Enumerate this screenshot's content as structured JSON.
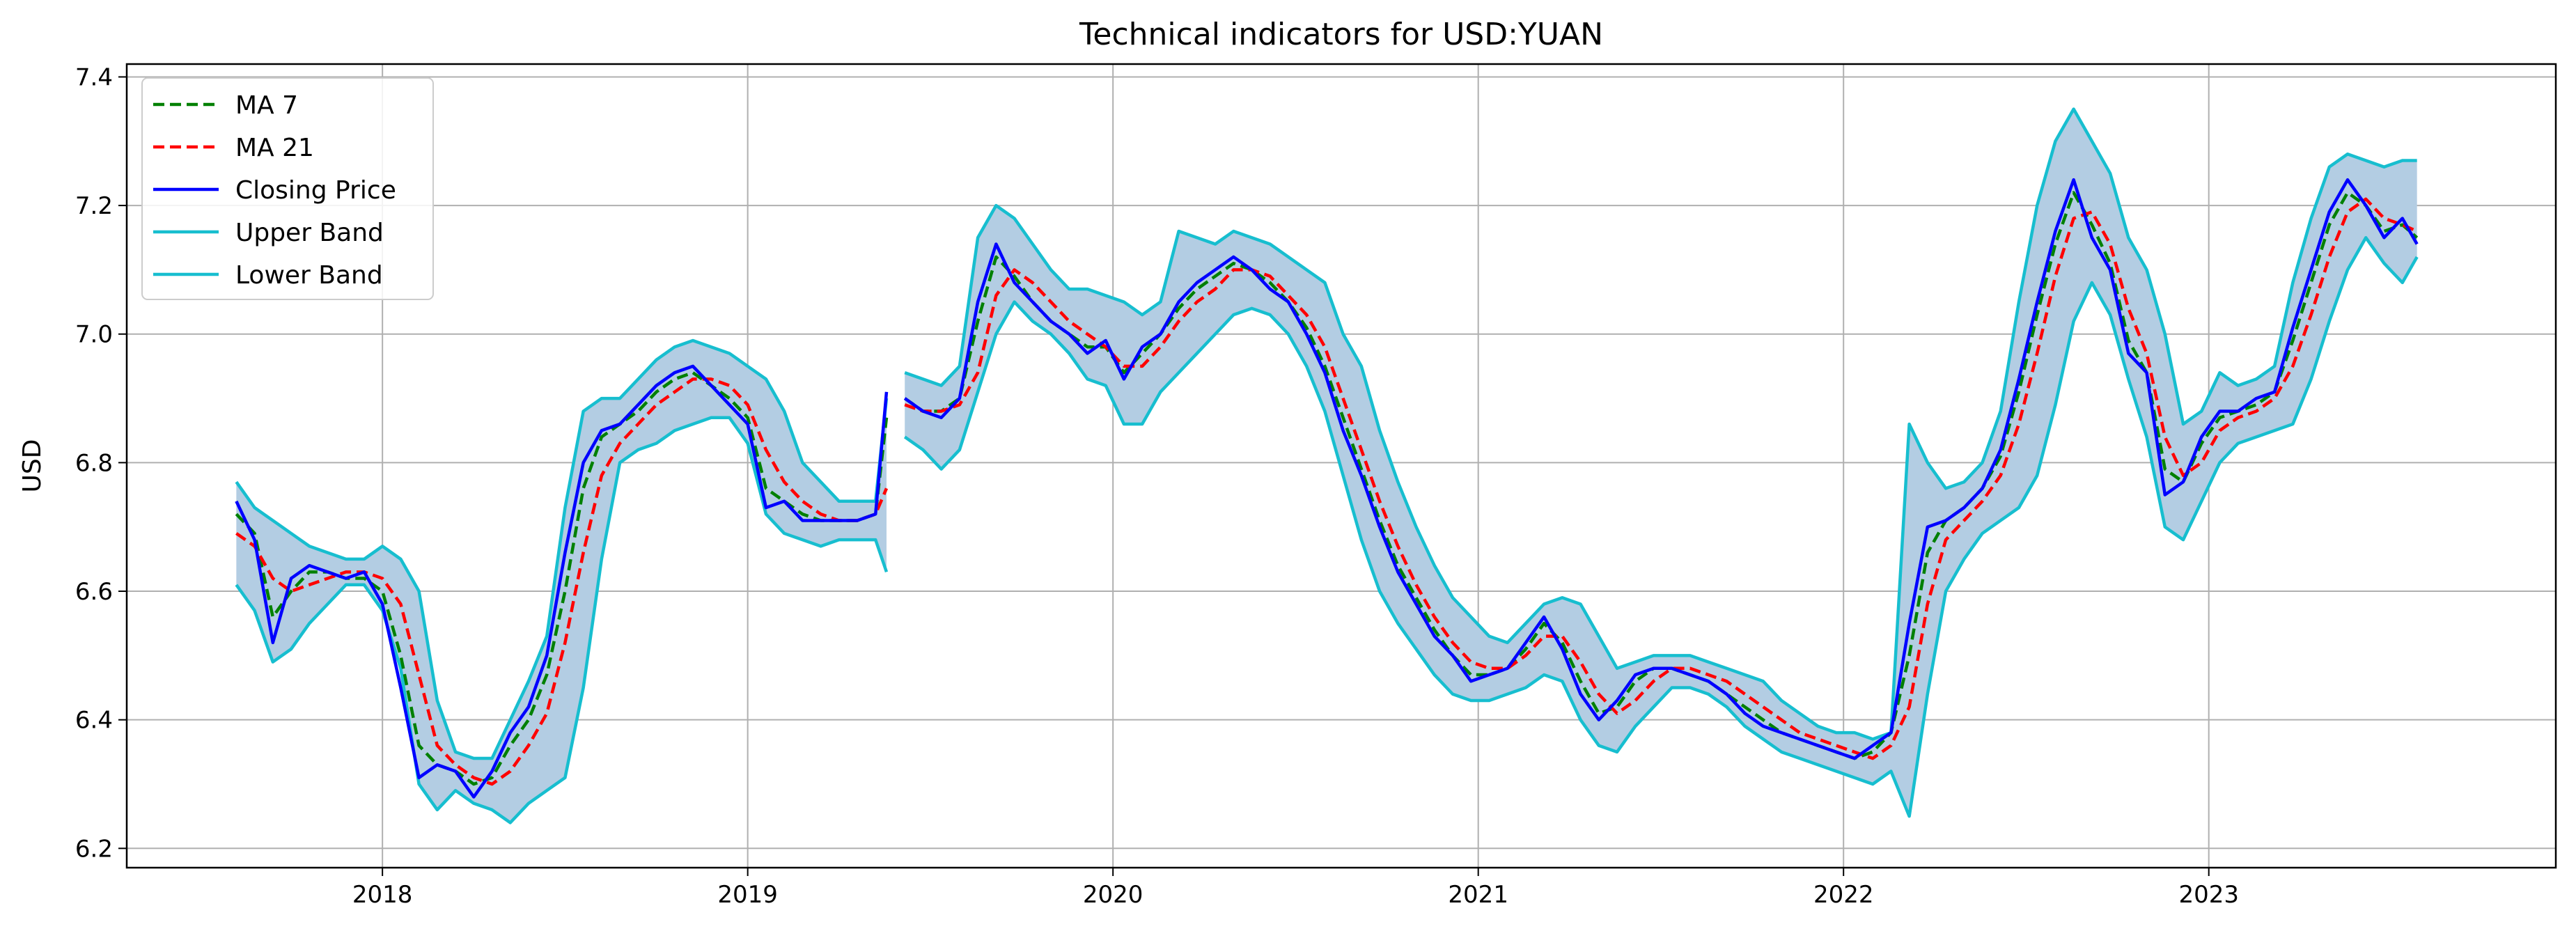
{
  "chart_data": {
    "type": "line",
    "title": "Technical indicators for USD:YUAN",
    "xlabel": "",
    "ylabel": "USD",
    "xlim": [
      2017.3,
      2023.95
    ],
    "ylim": [
      6.17,
      7.42
    ],
    "x_ticks": [
      2018,
      2019,
      2020,
      2021,
      2022,
      2023
    ],
    "x_tick_labels": [
      "2018",
      "2019",
      "2020",
      "2021",
      "2022",
      "2023"
    ],
    "y_ticks": [
      6.2,
      6.4,
      6.6,
      6.8,
      7.0,
      7.2,
      7.4
    ],
    "y_tick_labels": [
      "6.2",
      "6.4",
      "6.6",
      "6.8",
      "7.0",
      "7.2",
      "7.4"
    ],
    "grid": true,
    "legend_position": "top-left",
    "legend": [
      "MA 7",
      "MA 21",
      "Closing Price",
      "Upper Band",
      "Lower Band"
    ],
    "band_fill_color": "#b3cde3",
    "series": [
      {
        "name": "MA 7",
        "color": "#008000",
        "style": "dashed"
      },
      {
        "name": "MA 21",
        "color": "#ff0000",
        "style": "dashed"
      },
      {
        "name": "Closing Price",
        "color": "#0000ff",
        "style": "solid"
      },
      {
        "name": "Upper Band",
        "color": "#17becf",
        "style": "solid"
      },
      {
        "name": "Lower Band",
        "color": "#17becf",
        "style": "solid"
      }
    ],
    "segments": [
      {
        "x": [
          2017.6,
          2017.65,
          2017.7,
          2017.75,
          2017.8,
          2017.85,
          2017.9,
          2017.95,
          2018.0,
          2018.05,
          2018.1,
          2018.15,
          2018.2,
          2018.25,
          2018.3,
          2018.35,
          2018.4,
          2018.45,
          2018.5,
          2018.55,
          2018.6,
          2018.65,
          2018.7,
          2018.75,
          2018.8,
          2018.85,
          2018.9,
          2018.95,
          2019.0,
          2019.05,
          2019.1,
          2019.15,
          2019.2,
          2019.25,
          2019.3,
          2019.35,
          2019.38
        ],
        "close": [
          6.74,
          6.68,
          6.52,
          6.62,
          6.64,
          6.63,
          6.62,
          6.63,
          6.58,
          6.45,
          6.31,
          6.33,
          6.32,
          6.28,
          6.32,
          6.38,
          6.42,
          6.5,
          6.66,
          6.8,
          6.85,
          6.86,
          6.89,
          6.92,
          6.94,
          6.95,
          6.92,
          6.89,
          6.86,
          6.73,
          6.74,
          6.71,
          6.71,
          6.71,
          6.71,
          6.72,
          6.91
        ],
        "ma7": [
          6.72,
          6.69,
          6.56,
          6.6,
          6.63,
          6.63,
          6.62,
          6.62,
          6.6,
          6.5,
          6.36,
          6.33,
          6.32,
          6.3,
          6.31,
          6.36,
          6.4,
          6.47,
          6.6,
          6.76,
          6.84,
          6.86,
          6.88,
          6.91,
          6.93,
          6.94,
          6.92,
          6.9,
          6.87,
          6.76,
          6.74,
          6.72,
          6.71,
          6.71,
          6.71,
          6.72,
          6.87
        ],
        "ma21": [
          6.69,
          6.67,
          6.62,
          6.6,
          6.61,
          6.62,
          6.63,
          6.63,
          6.62,
          6.58,
          6.47,
          6.36,
          6.33,
          6.31,
          6.3,
          6.32,
          6.36,
          6.41,
          6.52,
          6.66,
          6.78,
          6.83,
          6.86,
          6.89,
          6.91,
          6.93,
          6.93,
          6.92,
          6.89,
          6.82,
          6.77,
          6.74,
          6.72,
          6.71,
          6.71,
          6.72,
          6.76
        ],
        "upper": [
          6.77,
          6.73,
          6.71,
          6.69,
          6.67,
          6.66,
          6.65,
          6.65,
          6.67,
          6.65,
          6.6,
          6.43,
          6.35,
          6.34,
          6.34,
          6.4,
          6.46,
          6.53,
          6.73,
          6.88,
          6.9,
          6.9,
          6.93,
          6.96,
          6.98,
          6.99,
          6.98,
          6.97,
          6.95,
          6.93,
          6.88,
          6.8,
          6.77,
          6.74,
          6.74,
          6.74,
          6.9
        ],
        "lower": [
          6.61,
          6.57,
          6.49,
          6.51,
          6.55,
          6.58,
          6.61,
          6.61,
          6.57,
          6.48,
          6.3,
          6.26,
          6.29,
          6.27,
          6.26,
          6.24,
          6.27,
          6.29,
          6.31,
          6.45,
          6.65,
          6.8,
          6.82,
          6.83,
          6.85,
          6.86,
          6.87,
          6.87,
          6.83,
          6.72,
          6.69,
          6.68,
          6.67,
          6.68,
          6.68,
          6.68,
          6.63
        ]
      },
      {
        "x": [
          2019.43,
          2019.48,
          2019.53,
          2019.58,
          2019.63,
          2019.68,
          2019.73,
          2019.78,
          2019.83,
          2019.88,
          2019.93,
          2019.98,
          2020.03,
          2020.08,
          2020.13,
          2020.18,
          2020.23,
          2020.28,
          2020.33,
          2020.38,
          2020.43,
          2020.48,
          2020.53,
          2020.58,
          2020.63,
          2020.68,
          2020.73,
          2020.78,
          2020.83,
          2020.88,
          2020.93,
          2020.98,
          2021.03,
          2021.08,
          2021.13,
          2021.18,
          2021.23,
          2021.28,
          2021.33,
          2021.38,
          2021.43,
          2021.48,
          2021.53,
          2021.58,
          2021.63,
          2021.68,
          2021.73,
          2021.78,
          2021.83,
          2021.88,
          2021.93,
          2021.98,
          2022.03,
          2022.08,
          2022.13,
          2022.18,
          2022.23,
          2022.28,
          2022.33,
          2022.38,
          2022.43,
          2022.48,
          2022.53,
          2022.58,
          2022.63,
          2022.68,
          2022.73,
          2022.78,
          2022.83,
          2022.88,
          2022.93,
          2022.98,
          2023.03,
          2023.08,
          2023.13,
          2023.18,
          2023.23,
          2023.28,
          2023.33,
          2023.38,
          2023.43,
          2023.48,
          2023.53,
          2023.57
        ],
        "close": [
          6.9,
          6.88,
          6.87,
          6.9,
          7.05,
          7.14,
          7.08,
          7.05,
          7.02,
          7.0,
          6.97,
          6.99,
          6.93,
          6.98,
          7.0,
          7.05,
          7.08,
          7.1,
          7.12,
          7.1,
          7.07,
          7.05,
          7.0,
          6.94,
          6.85,
          6.78,
          6.7,
          6.63,
          6.58,
          6.53,
          6.5,
          6.46,
          6.47,
          6.48,
          6.52,
          6.56,
          6.51,
          6.44,
          6.4,
          6.43,
          6.47,
          6.48,
          6.48,
          6.47,
          6.46,
          6.44,
          6.41,
          6.39,
          6.38,
          6.37,
          6.36,
          6.35,
          6.34,
          6.36,
          6.38,
          6.55,
          6.7,
          6.71,
          6.73,
          6.76,
          6.82,
          6.93,
          7.05,
          7.16,
          7.24,
          7.15,
          7.1,
          6.97,
          6.94,
          6.75,
          6.77,
          6.84,
          6.88,
          6.88,
          6.9,
          6.91,
          7.01,
          7.1,
          7.19,
          7.24,
          7.2,
          7.15,
          7.18,
          7.14
        ],
        "ma7": [
          6.9,
          6.88,
          6.88,
          6.9,
          7.02,
          7.12,
          7.09,
          7.05,
          7.02,
          7.0,
          6.98,
          6.98,
          6.94,
          6.97,
          7.0,
          7.04,
          7.07,
          7.09,
          7.11,
          7.1,
          7.08,
          7.05,
          7.01,
          6.95,
          6.87,
          6.79,
          6.71,
          6.64,
          6.59,
          6.54,
          6.5,
          6.47,
          6.47,
          6.48,
          6.51,
          6.55,
          6.52,
          6.46,
          6.41,
          6.42,
          6.46,
          6.48,
          6.48,
          6.47,
          6.46,
          6.44,
          6.42,
          6.4,
          6.38,
          6.37,
          6.36,
          6.35,
          6.34,
          6.35,
          6.38,
          6.5,
          6.66,
          6.71,
          6.73,
          6.76,
          6.81,
          6.91,
          7.03,
          7.14,
          7.22,
          7.17,
          7.11,
          6.99,
          6.94,
          6.79,
          6.77,
          6.83,
          6.87,
          6.88,
          6.89,
          6.91,
          6.99,
          7.08,
          7.17,
          7.22,
          7.2,
          7.16,
          7.17,
          7.15
        ],
        "ma21": [
          6.89,
          6.88,
          6.88,
          6.89,
          6.94,
          7.06,
          7.1,
          7.08,
          7.05,
          7.02,
          7.0,
          6.98,
          6.95,
          6.95,
          6.98,
          7.02,
          7.05,
          7.07,
          7.1,
          7.1,
          7.09,
          7.06,
          7.03,
          6.98,
          6.9,
          6.82,
          6.74,
          6.67,
          6.61,
          6.56,
          6.52,
          6.49,
          6.48,
          6.48,
          6.5,
          6.53,
          6.53,
          6.49,
          6.44,
          6.41,
          6.43,
          6.46,
          6.48,
          6.48,
          6.47,
          6.46,
          6.44,
          6.42,
          6.4,
          6.38,
          6.37,
          6.36,
          6.35,
          6.34,
          6.36,
          6.42,
          6.58,
          6.68,
          6.71,
          6.74,
          6.78,
          6.86,
          6.97,
          7.09,
          7.18,
          7.19,
          7.14,
          7.04,
          6.97,
          6.84,
          6.78,
          6.8,
          6.85,
          6.87,
          6.88,
          6.9,
          6.95,
          7.03,
          7.12,
          7.19,
          7.21,
          7.18,
          7.17,
          7.16
        ],
        "upper": [
          6.94,
          6.93,
          6.92,
          6.95,
          7.15,
          7.2,
          7.18,
          7.14,
          7.1,
          7.07,
          7.07,
          7.06,
          7.05,
          7.03,
          7.05,
          7.16,
          7.15,
          7.14,
          7.16,
          7.15,
          7.14,
          7.12,
          7.1,
          7.08,
          7.0,
          6.95,
          6.85,
          6.77,
          6.7,
          6.64,
          6.59,
          6.56,
          6.53,
          6.52,
          6.55,
          6.58,
          6.59,
          6.58,
          6.53,
          6.48,
          6.49,
          6.5,
          6.5,
          6.5,
          6.49,
          6.48,
          6.47,
          6.46,
          6.43,
          6.41,
          6.39,
          6.38,
          6.38,
          6.37,
          6.38,
          6.86,
          6.8,
          6.76,
          6.77,
          6.8,
          6.88,
          7.05,
          7.2,
          7.3,
          7.35,
          7.3,
          7.25,
          7.15,
          7.1,
          7.0,
          6.86,
          6.88,
          6.94,
          6.92,
          6.93,
          6.95,
          7.08,
          7.18,
          7.26,
          7.28,
          7.27,
          7.26,
          7.27,
          7.27
        ],
        "lower": [
          6.84,
          6.82,
          6.79,
          6.82,
          6.91,
          7.0,
          7.05,
          7.02,
          7.0,
          6.97,
          6.93,
          6.92,
          6.86,
          6.86,
          6.91,
          6.94,
          6.97,
          7.0,
          7.03,
          7.04,
          7.03,
          7.0,
          6.95,
          6.88,
          6.78,
          6.68,
          6.6,
          6.55,
          6.51,
          6.47,
          6.44,
          6.43,
          6.43,
          6.44,
          6.45,
          6.47,
          6.46,
          6.4,
          6.36,
          6.35,
          6.39,
          6.42,
          6.45,
          6.45,
          6.44,
          6.42,
          6.39,
          6.37,
          6.35,
          6.34,
          6.33,
          6.32,
          6.31,
          6.3,
          6.32,
          6.25,
          6.44,
          6.6,
          6.65,
          6.69,
          6.71,
          6.73,
          6.78,
          6.89,
          7.02,
          7.08,
          7.03,
          6.93,
          6.84,
          6.7,
          6.68,
          6.74,
          6.8,
          6.83,
          6.84,
          6.85,
          6.86,
          6.93,
          7.02,
          7.1,
          7.15,
          7.11,
          7.08,
          7.12
        ]
      }
    ]
  }
}
